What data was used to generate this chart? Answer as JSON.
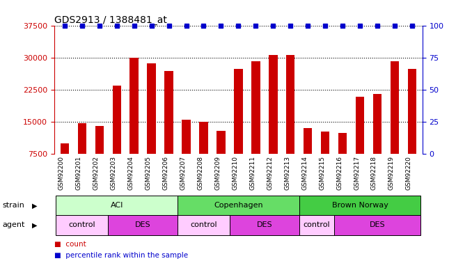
{
  "title": "GDS2913 / 1388481_at",
  "samples": [
    "GSM92200",
    "GSM92201",
    "GSM92202",
    "GSM92203",
    "GSM92204",
    "GSM92205",
    "GSM92206",
    "GSM92207",
    "GSM92208",
    "GSM92209",
    "GSM92210",
    "GSM92211",
    "GSM92212",
    "GSM92213",
    "GSM92214",
    "GSM92215",
    "GSM92216",
    "GSM92217",
    "GSM92218",
    "GSM92219",
    "GSM92220"
  ],
  "counts": [
    10000,
    14800,
    14000,
    23500,
    30000,
    28700,
    27000,
    15500,
    15000,
    13000,
    27500,
    29300,
    30800,
    30800,
    13500,
    12800,
    12500,
    21000,
    21500,
    29200,
    27500
  ],
  "percentile": [
    100,
    100,
    100,
    100,
    100,
    100,
    100,
    100,
    100,
    100,
    100,
    100,
    100,
    100,
    100,
    100,
    100,
    100,
    100,
    100,
    100
  ],
  "bar_color": "#cc0000",
  "percentile_color": "#0000cc",
  "ylim_left": [
    7500,
    37500
  ],
  "ylim_right": [
    0,
    100
  ],
  "yticks_left": [
    7500,
    15000,
    22500,
    30000,
    37500
  ],
  "yticks_right": [
    0,
    25,
    50,
    75,
    100
  ],
  "grid_values": [
    15000,
    22500,
    30000
  ],
  "strains": [
    {
      "label": "ACI",
      "start": 0,
      "end": 6,
      "color": "#ccffcc"
    },
    {
      "label": "Copenhagen",
      "start": 7,
      "end": 13,
      "color": "#66dd66"
    },
    {
      "label": "Brown Norway",
      "start": 14,
      "end": 20,
      "color": "#44cc44"
    }
  ],
  "agents": [
    {
      "label": "control",
      "start": 0,
      "end": 2,
      "color": "#ffccff"
    },
    {
      "label": "DES",
      "start": 3,
      "end": 6,
      "color": "#dd44dd"
    },
    {
      "label": "control",
      "start": 7,
      "end": 9,
      "color": "#ffccff"
    },
    {
      "label": "DES",
      "start": 10,
      "end": 13,
      "color": "#dd44dd"
    },
    {
      "label": "control",
      "start": 14,
      "end": 15,
      "color": "#ffccff"
    },
    {
      "label": "DES",
      "start": 16,
      "end": 20,
      "color": "#dd44dd"
    }
  ],
  "legend_count_color": "#cc0000",
  "legend_percentile_color": "#0000cc",
  "background_color": "#ffffff",
  "tick_color_left": "#cc0000",
  "tick_color_right": "#0000cc",
  "bar_width": 0.5,
  "xlim": [
    -0.6,
    20.6
  ]
}
